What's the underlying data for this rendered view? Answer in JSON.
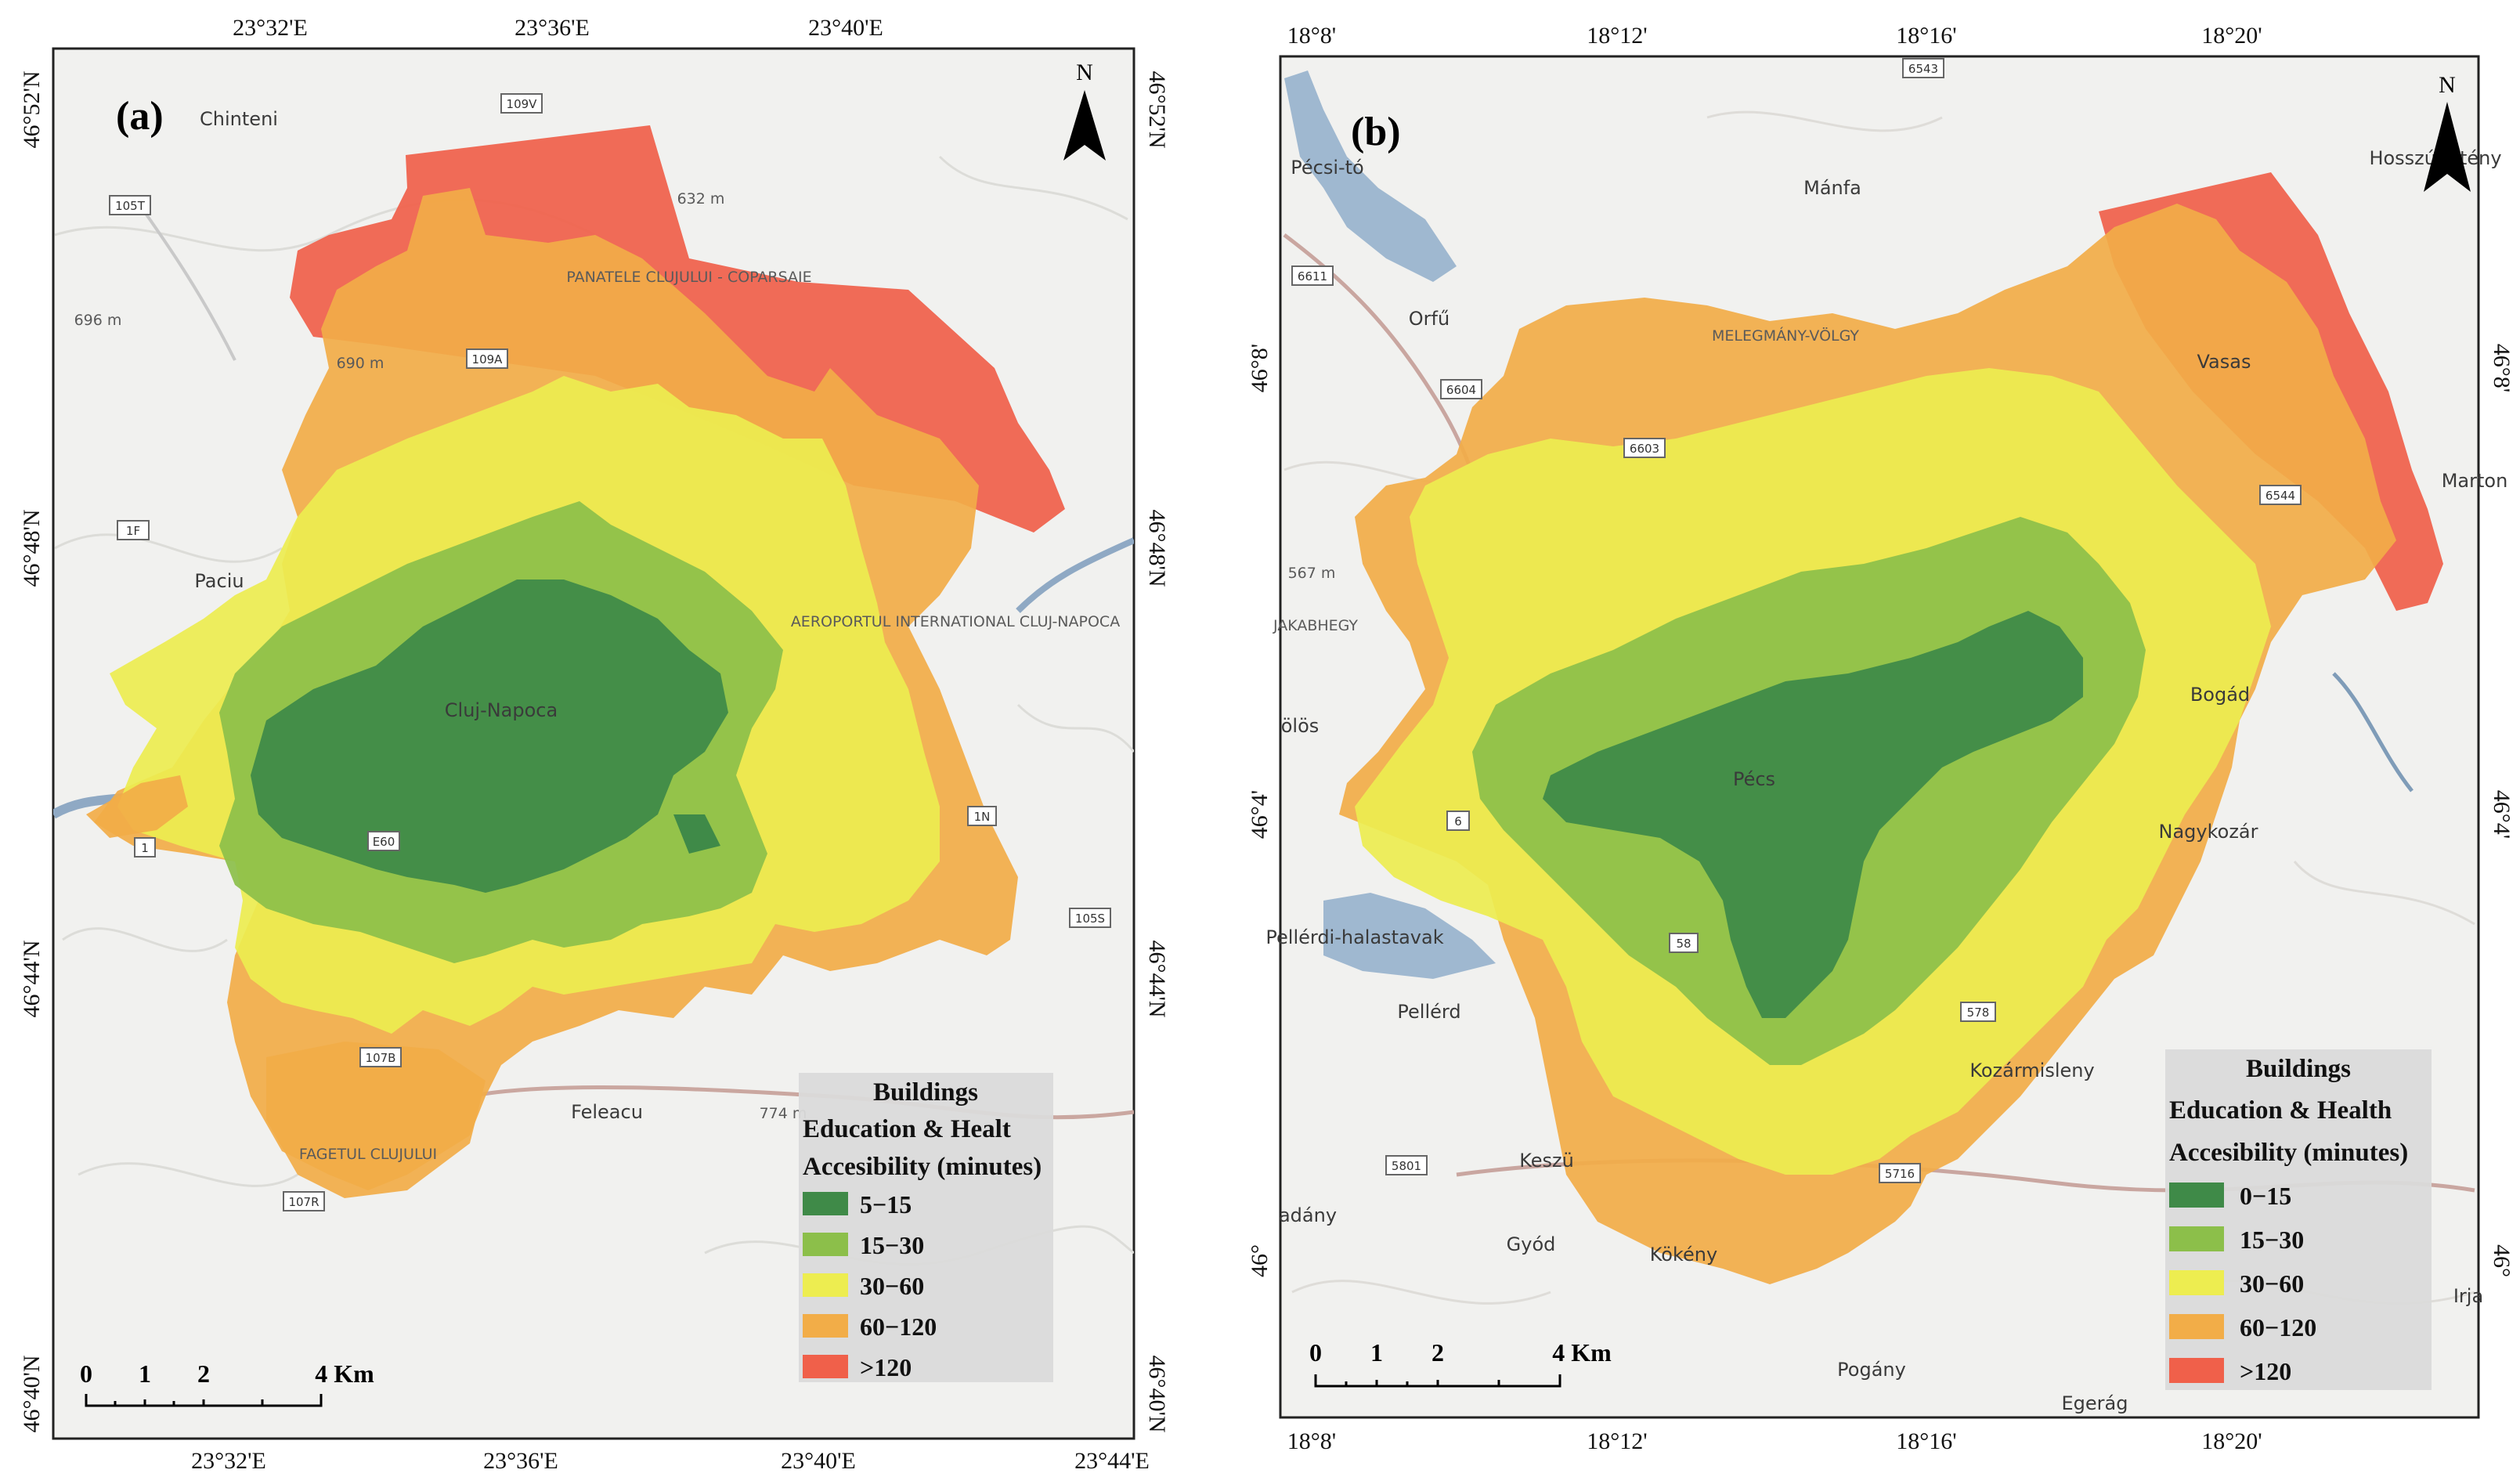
{
  "maps": [
    {
      "id": "a",
      "panel_label": "(a)",
      "north_label": "N",
      "top_ticks": [
        "23°32'E",
        "23°36'E",
        "23°40'E"
      ],
      "bottom_ticks": [
        "23°32'E",
        "23°36'E",
        "23°40'E",
        "23°44'E"
      ],
      "left_ticks": [
        "46°52'N",
        "46°48'N",
        "46°44'N",
        "46°40'N"
      ],
      "right_ticks": [
        "46°52'N",
        "46°48'N",
        "46°44'N",
        "46°40'N"
      ],
      "places": [
        "Chinteni",
        "PANATELE CLUJULUI - COPARSAIE",
        "Cluj-Napoca",
        "AEROPORTUL INTERNATIONAL CLUJ-NAPOCA",
        "Feleacu",
        "FAGETUL CLUJULUI",
        "Paciu"
      ],
      "elevations": [
        "696 m",
        "632 m",
        "690 m",
        "774 m"
      ],
      "roads": [
        "109V",
        "105T",
        "109A",
        "1F",
        "1",
        "1N",
        "105S",
        "107B",
        "107R",
        "E60"
      ],
      "scale": {
        "labels": [
          "0",
          "1",
          "2",
          "4 Km"
        ]
      },
      "legend": {
        "title_lines": [
          "Buildings",
          "Education & Healt",
          "Accesibility (minutes)"
        ],
        "items": [
          {
            "label": "5−15",
            "color": "#3f8a48"
          },
          {
            "label": "15−30",
            "color": "#8cbf4a"
          },
          {
            "label": "30−60",
            "color": "#eded50"
          },
          {
            "label": "60−120",
            "color": "#f2ad48"
          },
          {
            "label": ">120",
            "color": "#f0604a"
          }
        ]
      }
    },
    {
      "id": "b",
      "panel_label": "(b)",
      "north_label": "N",
      "top_ticks": [
        "18°8'",
        "18°12'",
        "18°16'",
        "18°20'"
      ],
      "bottom_ticks": [
        "18°8'",
        "18°12'",
        "18°16'",
        "18°20'"
      ],
      "left_ticks": [
        "46°8'",
        "46°4'",
        "46°"
      ],
      "right_ticks": [
        "46°8'",
        "46°4'",
        "46°"
      ],
      "places": [
        "Pécsi-tó",
        "Mánfa",
        "Hosszúhetény",
        "Orfű",
        "MELEGMÁNY-VÖLGY",
        "Vasas",
        "Marton",
        "JAKABHEGY",
        "Bogád",
        "Pécs",
        "Nagykozár",
        "Pellérdi-halastavak",
        "Pellérd",
        "Kozármisleny",
        "Keszü",
        "Gyód",
        "Kökény",
        "Pogány",
        "Egerág",
        "Irja",
        "adány",
        "ölös"
      ],
      "elevations": [
        "567 m"
      ],
      "roads": [
        "6543",
        "6611",
        "6604",
        "6603",
        "6544",
        "5801",
        "5716",
        "578",
        "58",
        "6"
      ],
      "scale": {
        "labels": [
          "0",
          "1",
          "2",
          "4 Km"
        ]
      },
      "legend": {
        "title_lines": [
          "Buildings",
          "Education & Health",
          "Accesibility (minutes)"
        ],
        "items": [
          {
            "label": "0−15",
            "color": "#3f8a48"
          },
          {
            "label": "15−30",
            "color": "#8cbf4a"
          },
          {
            "label": "30−60",
            "color": "#eded50"
          },
          {
            "label": "60−120",
            "color": "#f2ad48"
          },
          {
            "label": ">120",
            "color": "#f0604a"
          }
        ]
      }
    }
  ]
}
